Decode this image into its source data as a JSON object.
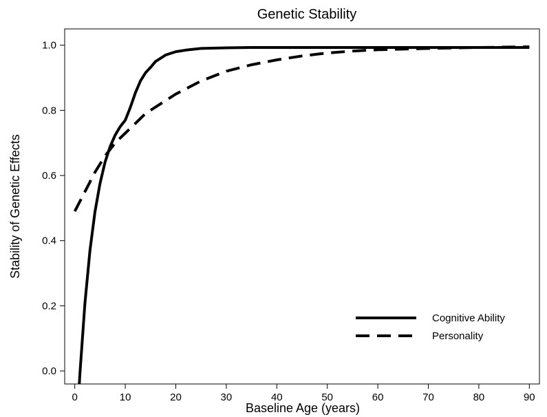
{
  "chart_data": {
    "type": "line",
    "title": "Genetic Stability",
    "xlabel": "Baseline Age (years)",
    "ylabel": "Stability of Genetic Effects",
    "xlim": [
      -2,
      92
    ],
    "ylim": [
      -0.04,
      1.05
    ],
    "x_ticks": [
      0,
      10,
      20,
      30,
      40,
      50,
      60,
      70,
      80,
      90
    ],
    "x_tick_labels": [
      "0",
      "10",
      "20",
      "30",
      "40",
      "50",
      "60",
      "70",
      "80",
      "90"
    ],
    "y_ticks": [
      0.0,
      0.2,
      0.4,
      0.6,
      0.8,
      1.0
    ],
    "y_tick_labels": [
      "0.0",
      "0.2",
      "0.4",
      "0.6",
      "0.8",
      "1.0"
    ],
    "grid": false,
    "legend_position": "bottom-right",
    "series": [
      {
        "name": "Cognitive Ability",
        "line_style": "solid",
        "color": "#000000",
        "x": [
          0.9,
          1,
          2,
          3,
          4,
          5,
          6,
          7,
          8,
          9,
          10,
          11,
          12,
          13,
          14,
          15,
          16,
          18,
          20,
          22,
          25,
          30,
          35,
          40,
          50,
          60,
          70,
          80,
          90
        ],
        "y": [
          -0.04,
          -0.013,
          0.207,
          0.369,
          0.488,
          0.576,
          0.641,
          0.689,
          0.724,
          0.75,
          0.77,
          0.809,
          0.854,
          0.89,
          0.915,
          0.932,
          0.95,
          0.97,
          0.98,
          0.985,
          0.99,
          0.992,
          0.993,
          0.993,
          0.993,
          0.993,
          0.993,
          0.993,
          0.993
        ]
      },
      {
        "name": "Personality",
        "line_style": "dashed",
        "color": "#000000",
        "x": [
          0,
          2,
          4,
          6,
          8,
          10,
          12,
          14,
          16,
          18,
          20,
          25,
          30,
          35,
          40,
          45,
          50,
          55,
          60,
          70,
          80,
          90
        ],
        "y": [
          0.49,
          0.55,
          0.61,
          0.66,
          0.7,
          0.73,
          0.76,
          0.79,
          0.81,
          0.83,
          0.85,
          0.89,
          0.92,
          0.94,
          0.955,
          0.967,
          0.976,
          0.982,
          0.986,
          0.99,
          0.993,
          0.995
        ]
      }
    ]
  }
}
